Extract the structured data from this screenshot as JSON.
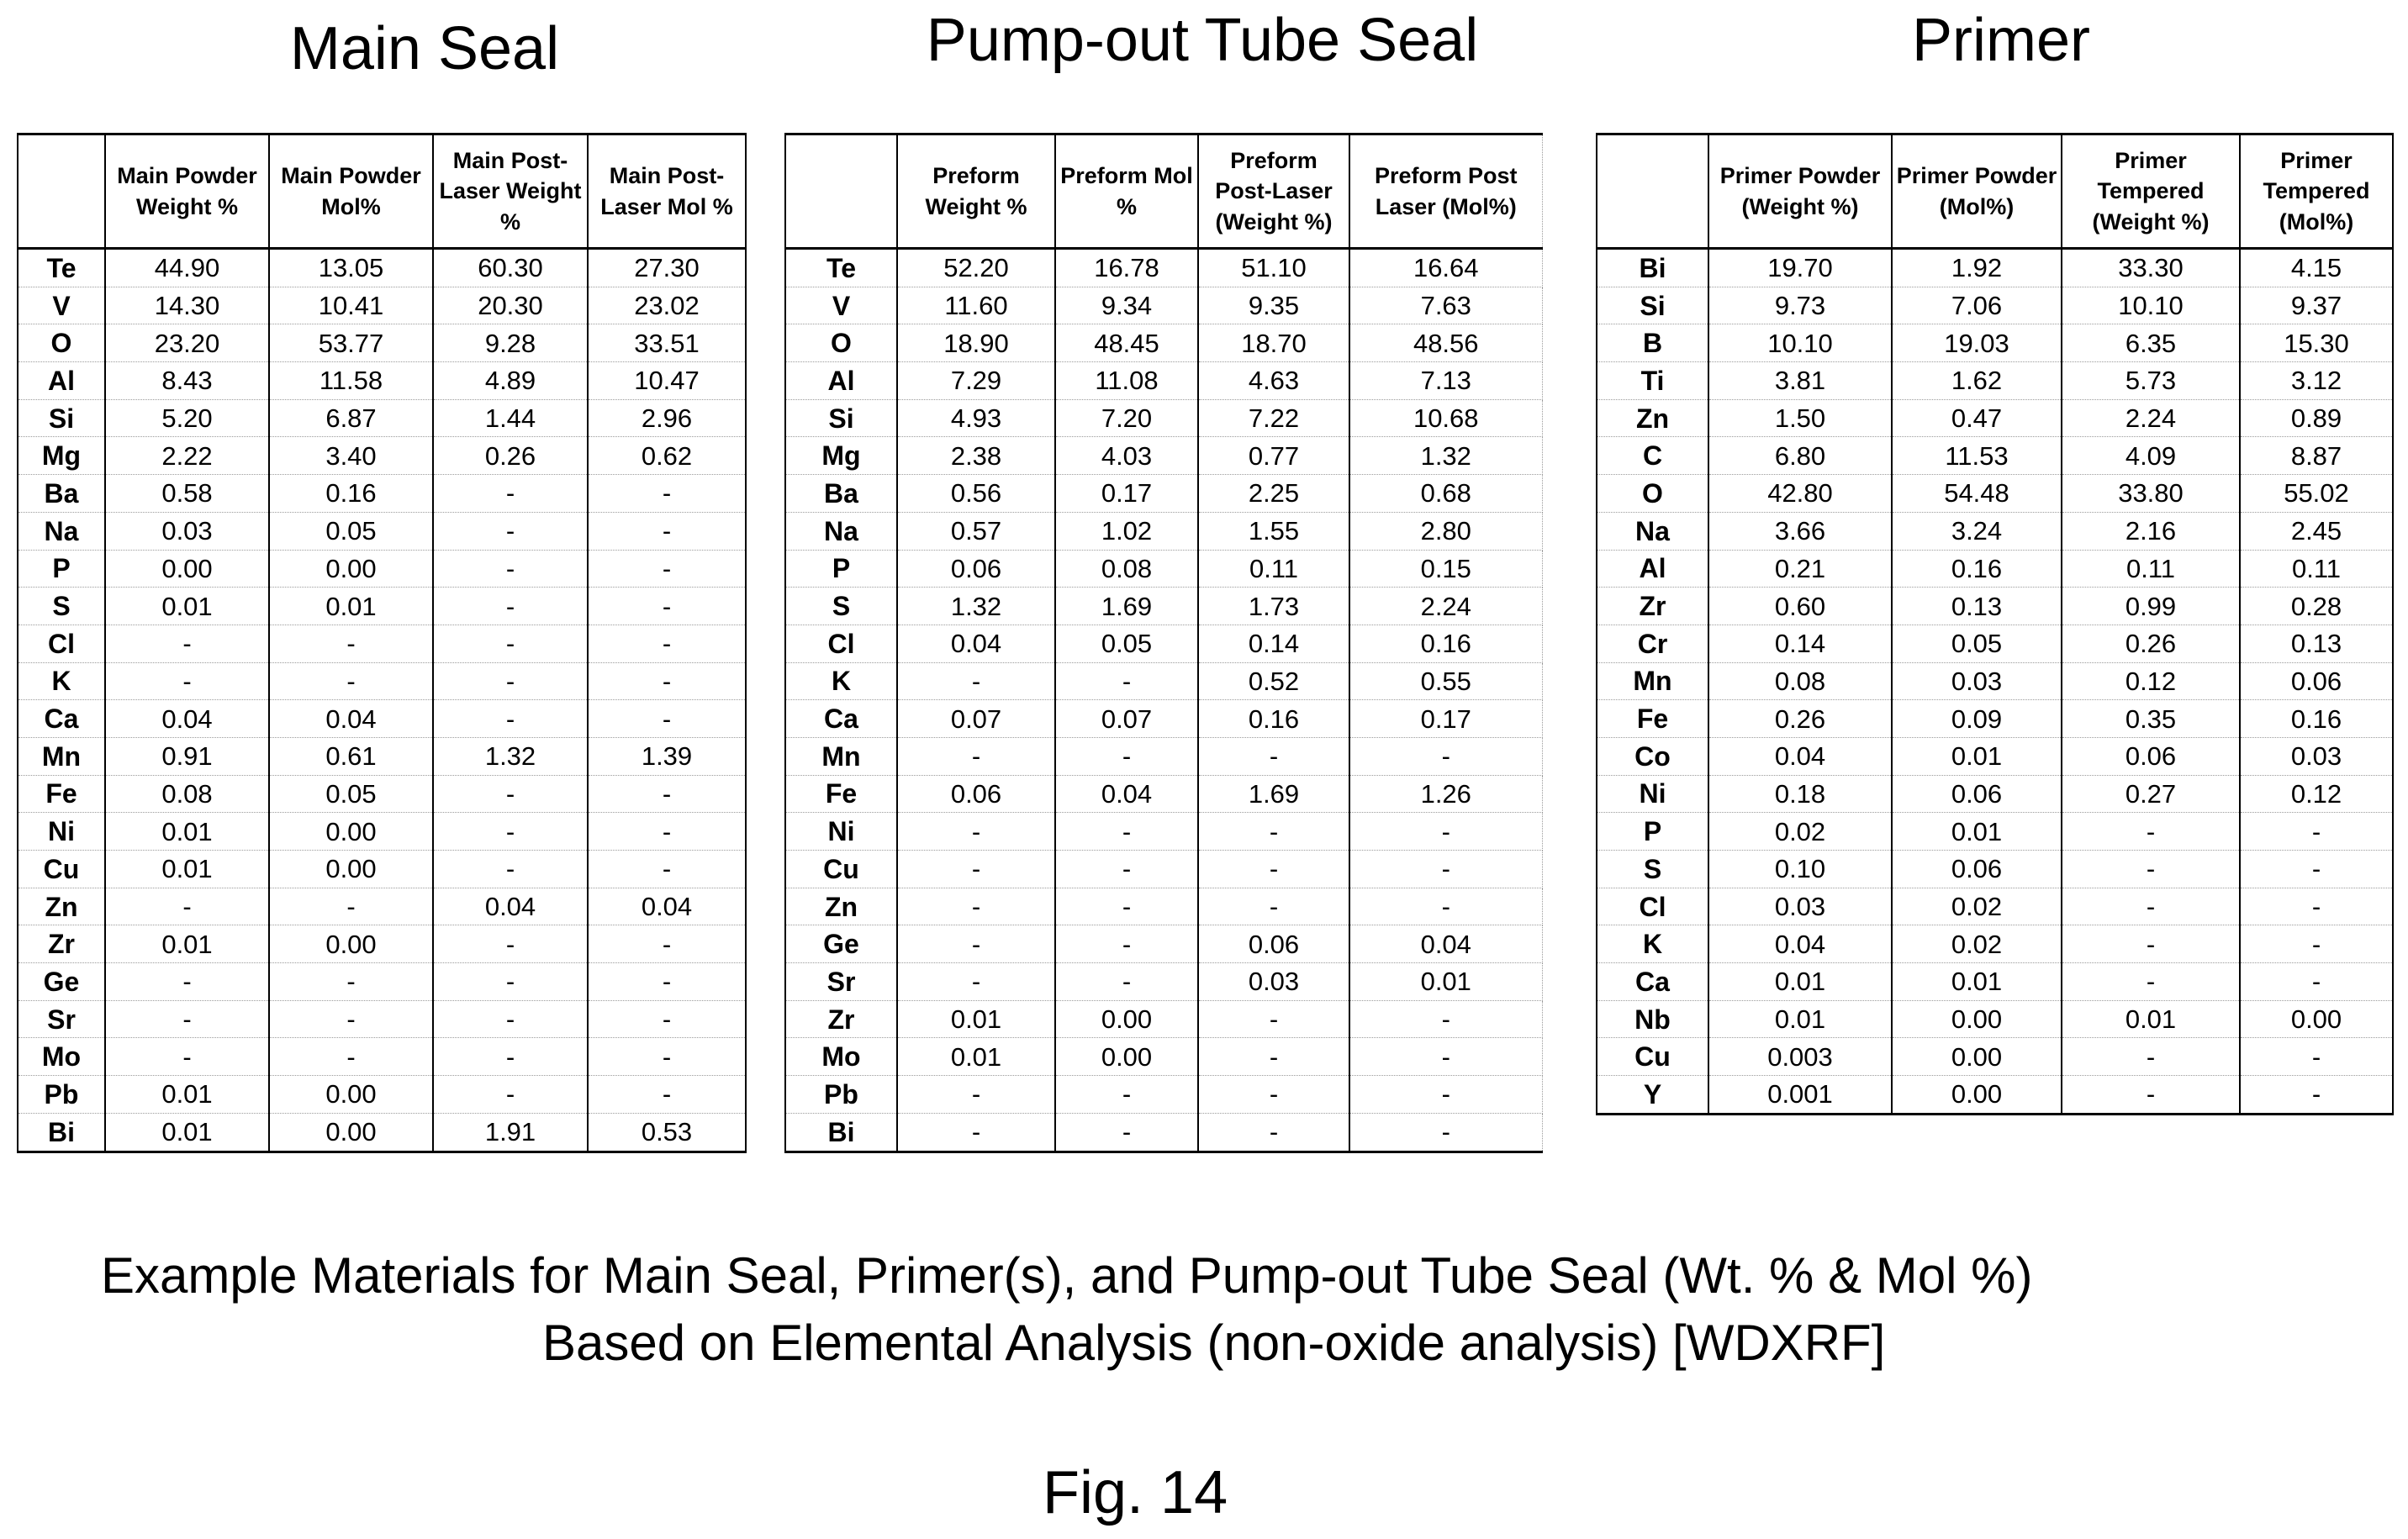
{
  "figure_label": "Fig. 14",
  "caption_line1": "Example Materials for Main Seal, Primer(s), and Pump-out Tube Seal (Wt. % & Mol %)",
  "caption_line2": "Based on Elemental Analysis (non-oxide analysis) [WDXRF]",
  "tables": [
    {
      "id": "main-seal",
      "title": "Main Seal",
      "headers": [
        "",
        "Main Powder Weight %",
        "Main Powder Mol%",
        "Main Post-Laser Weight %",
        "Main Post-Laser Mol %"
      ],
      "rows": [
        [
          "Te",
          "44.90",
          "13.05",
          "60.30",
          "27.30"
        ],
        [
          "V",
          "14.30",
          "10.41",
          "20.30",
          "23.02"
        ],
        [
          "O",
          "23.20",
          "53.77",
          "9.28",
          "33.51"
        ],
        [
          "Al",
          "8.43",
          "11.58",
          "4.89",
          "10.47"
        ],
        [
          "Si",
          "5.20",
          "6.87",
          "1.44",
          "2.96"
        ],
        [
          "Mg",
          "2.22",
          "3.40",
          "0.26",
          "0.62"
        ],
        [
          "Ba",
          "0.58",
          "0.16",
          "-",
          "-"
        ],
        [
          "Na",
          "0.03",
          "0.05",
          "-",
          "-"
        ],
        [
          "P",
          "0.00",
          "0.00",
          "-",
          "-"
        ],
        [
          "S",
          "0.01",
          "0.01",
          "-",
          "-"
        ],
        [
          "Cl",
          "-",
          "-",
          "-",
          "-"
        ],
        [
          "K",
          "-",
          "-",
          "-",
          "-"
        ],
        [
          "Ca",
          "0.04",
          "0.04",
          "-",
          "-"
        ],
        [
          "Mn",
          "0.91",
          "0.61",
          "1.32",
          "1.39"
        ],
        [
          "Fe",
          "0.08",
          "0.05",
          "-",
          "-"
        ],
        [
          "Ni",
          "0.01",
          "0.00",
          "-",
          "-"
        ],
        [
          "Cu",
          "0.01",
          "0.00",
          "-",
          "-"
        ],
        [
          "Zn",
          "-",
          "-",
          "0.04",
          "0.04"
        ],
        [
          "Zr",
          "0.01",
          "0.00",
          "-",
          "-"
        ],
        [
          "Ge",
          "-",
          "-",
          "-",
          "-"
        ],
        [
          "Sr",
          "-",
          "-",
          "-",
          "-"
        ],
        [
          "Mo",
          "-",
          "-",
          "-",
          "-"
        ],
        [
          "Pb",
          "0.01",
          "0.00",
          "-",
          "-"
        ],
        [
          "Bi",
          "0.01",
          "0.00",
          "1.91",
          "0.53"
        ]
      ]
    },
    {
      "id": "pump-out-tube-seal",
      "title": "Pump-out Tube Seal",
      "headers": [
        "",
        "Preform Weight %",
        "Preform Mol %",
        "Preform Post-Laser (Weight %)",
        "Preform Post Laser (Mol%)"
      ],
      "rows": [
        [
          "Te",
          "52.20",
          "16.78",
          "51.10",
          "16.64"
        ],
        [
          "V",
          "11.60",
          "9.34",
          "9.35",
          "7.63"
        ],
        [
          "O",
          "18.90",
          "48.45",
          "18.70",
          "48.56"
        ],
        [
          "Al",
          "7.29",
          "11.08",
          "4.63",
          "7.13"
        ],
        [
          "Si",
          "4.93",
          "7.20",
          "7.22",
          "10.68"
        ],
        [
          "Mg",
          "2.38",
          "4.03",
          "0.77",
          "1.32"
        ],
        [
          "Ba",
          "0.56",
          "0.17",
          "2.25",
          "0.68"
        ],
        [
          "Na",
          "0.57",
          "1.02",
          "1.55",
          "2.80"
        ],
        [
          "P",
          "0.06",
          "0.08",
          "0.11",
          "0.15"
        ],
        [
          "S",
          "1.32",
          "1.69",
          "1.73",
          "2.24"
        ],
        [
          "Cl",
          "0.04",
          "0.05",
          "0.14",
          "0.16"
        ],
        [
          "K",
          "-",
          "-",
          "0.52",
          "0.55"
        ],
        [
          "Ca",
          "0.07",
          "0.07",
          "0.16",
          "0.17"
        ],
        [
          "Mn",
          "-",
          "-",
          "-",
          "-"
        ],
        [
          "Fe",
          "0.06",
          "0.04",
          "1.69",
          "1.26"
        ],
        [
          "Ni",
          "-",
          "-",
          "-",
          "-"
        ],
        [
          "Cu",
          "-",
          "-",
          "-",
          "-"
        ],
        [
          "Zn",
          "-",
          "-",
          "-",
          "-"
        ],
        [
          "Ge",
          "-",
          "-",
          "0.06",
          "0.04"
        ],
        [
          "Sr",
          "-",
          "-",
          "0.03",
          "0.01"
        ],
        [
          "Zr",
          "0.01",
          "0.00",
          "-",
          "-"
        ],
        [
          "Mo",
          "0.01",
          "0.00",
          "-",
          "-"
        ],
        [
          "Pb",
          "-",
          "-",
          "-",
          "-"
        ],
        [
          "Bi",
          "-",
          "-",
          "-",
          "-"
        ]
      ]
    },
    {
      "id": "primer",
      "title": "Primer",
      "headers": [
        "",
        "Primer Powder (Weight %)",
        "Primer Powder (Mol%)",
        "Primer Tempered (Weight %)",
        "Primer Tempered (Mol%)"
      ],
      "rows": [
        [
          "Bi",
          "19.70",
          "1.92",
          "33.30",
          "4.15"
        ],
        [
          "Si",
          "9.73",
          "7.06",
          "10.10",
          "9.37"
        ],
        [
          "B",
          "10.10",
          "19.03",
          "6.35",
          "15.30"
        ],
        [
          "Ti",
          "3.81",
          "1.62",
          "5.73",
          "3.12"
        ],
        [
          "Zn",
          "1.50",
          "0.47",
          "2.24",
          "0.89"
        ],
        [
          "C",
          "6.80",
          "11.53",
          "4.09",
          "8.87"
        ],
        [
          "O",
          "42.80",
          "54.48",
          "33.80",
          "55.02"
        ],
        [
          "Na",
          "3.66",
          "3.24",
          "2.16",
          "2.45"
        ],
        [
          "Al",
          "0.21",
          "0.16",
          "0.11",
          "0.11"
        ],
        [
          "Zr",
          "0.60",
          "0.13",
          "0.99",
          "0.28"
        ],
        [
          "Cr",
          "0.14",
          "0.05",
          "0.26",
          "0.13"
        ],
        [
          "Mn",
          "0.08",
          "0.03",
          "0.12",
          "0.06"
        ],
        [
          "Fe",
          "0.26",
          "0.09",
          "0.35",
          "0.16"
        ],
        [
          "Co",
          "0.04",
          "0.01",
          "0.06",
          "0.03"
        ],
        [
          "Ni",
          "0.18",
          "0.06",
          "0.27",
          "0.12"
        ],
        [
          "P",
          "0.02",
          "0.01",
          "-",
          "-"
        ],
        [
          "S",
          "0.10",
          "0.06",
          "-",
          "-"
        ],
        [
          "Cl",
          "0.03",
          "0.02",
          "-",
          "-"
        ],
        [
          "K",
          "0.04",
          "0.02",
          "-",
          "-"
        ],
        [
          "Ca",
          "0.01",
          "0.01",
          "-",
          "-"
        ],
        [
          "Nb",
          "0.01",
          "0.00",
          "0.01",
          "0.00"
        ],
        [
          "Cu",
          "0.003",
          "0.00",
          "-",
          "-"
        ],
        [
          "Y",
          "0.001",
          "0.00",
          "-",
          "-"
        ]
      ]
    }
  ]
}
